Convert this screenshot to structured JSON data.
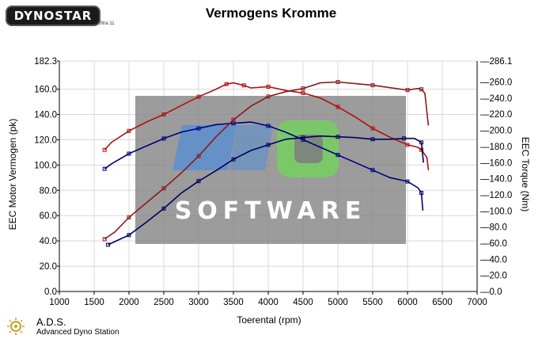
{
  "header": {
    "logo_text": "DYNOSTAR",
    "logo_sub": "Ultra 11",
    "title": "Vermogens Kromme"
  },
  "footer": {
    "brand": "A.D.S.",
    "brand_sub": "Advanced Dyno Station"
  },
  "watermark": {
    "text": "SOFTWARE"
  },
  "colors": {
    "power_stock": "#000080",
    "power_tuned": "#b01010",
    "torque_stock": "#000060",
    "torque_tuned": "#8a1a1a",
    "grid": "#d8d8d8",
    "watermark_bg": "#808080"
  },
  "chart_data": {
    "type": "line",
    "xlabel": "Toerental (rpm)",
    "ylabel": "EEC Motor Vermogen (pk)",
    "y2label": "EEC Torque (Nm)",
    "xlim": [
      1000,
      7000
    ],
    "ylim": [
      0,
      182.3
    ],
    "y2lim": [
      0,
      286.1
    ],
    "x_ticks": [
      "1000",
      "1500",
      "2000",
      "2500",
      "3000",
      "3500",
      "4000",
      "4500",
      "5000",
      "5500",
      "6000",
      "6500",
      "7000"
    ],
    "y_ticks": [
      "0.0",
      "20.0",
      "40.0",
      "60.0",
      "80.0",
      "100.0",
      "120.0",
      "140.0",
      "160.0",
      "182.3"
    ],
    "y2_ticks": [
      "0.0",
      "20.0",
      "40.0",
      "60.0",
      "80.0",
      "100.0",
      "120.0",
      "140.0",
      "160.0",
      "180.0",
      "200.0",
      "220.0",
      "240.0",
      "260.0",
      "286.1"
    ],
    "grid": true,
    "series": [
      {
        "axis": "left",
        "color_key": "power_tuned",
        "x": [
          1650,
          1750,
          2000,
          2250,
          2500,
          2750,
          3000,
          3250,
          3400,
          3500,
          3650,
          3750,
          4000,
          4250,
          4500,
          4750,
          5000,
          5250,
          5500,
          5750,
          6000,
          6150,
          6200,
          6280,
          6300
        ],
        "y": [
          112,
          118,
          127,
          134,
          140,
          147,
          154,
          160,
          164,
          165,
          163,
          161,
          162,
          159,
          157,
          153,
          146,
          138,
          129,
          122,
          116,
          114,
          112,
          106,
          96
        ]
      },
      {
        "axis": "left",
        "color_key": "power_stock",
        "x": [
          1650,
          1750,
          2000,
          2250,
          2500,
          2750,
          3000,
          3250,
          3500,
          3750,
          4000,
          4250,
          4500,
          4750,
          5000,
          5250,
          5500,
          5750,
          6000,
          6150,
          6200,
          6220
        ],
        "y": [
          97,
          101,
          109,
          115,
          121,
          126,
          129,
          132,
          133,
          134,
          131,
          126,
          120,
          114,
          108,
          102,
          96,
          90,
          87,
          82,
          78,
          64
        ]
      },
      {
        "axis": "right",
        "color_key": "torque_tuned",
        "x": [
          1650,
          1800,
          2000,
          2250,
          2500,
          2750,
          3000,
          3250,
          3500,
          3750,
          4000,
          4250,
          4500,
          4750,
          5000,
          5250,
          5500,
          5750,
          6000,
          6150,
          6200,
          6250,
          6300
        ],
        "y": [
          65,
          74,
          92,
          110,
          128,
          147,
          168,
          192,
          213,
          230,
          242,
          248,
          252,
          259,
          260,
          258,
          256,
          253,
          250,
          252,
          251,
          246,
          206
        ]
      },
      {
        "axis": "right",
        "color_key": "torque_stock",
        "x": [
          1700,
          1850,
          2000,
          2250,
          2500,
          2750,
          3000,
          3250,
          3500,
          3750,
          4000,
          4250,
          4500,
          4750,
          5000,
          5250,
          5500,
          5750,
          5950,
          6100,
          6200,
          6230
        ],
        "y": [
          58,
          64,
          70,
          86,
          103,
          122,
          137,
          150,
          164,
          175,
          182,
          189,
          191,
          193,
          192,
          191,
          189,
          189,
          190,
          190,
          185,
          160
        ]
      }
    ]
  }
}
